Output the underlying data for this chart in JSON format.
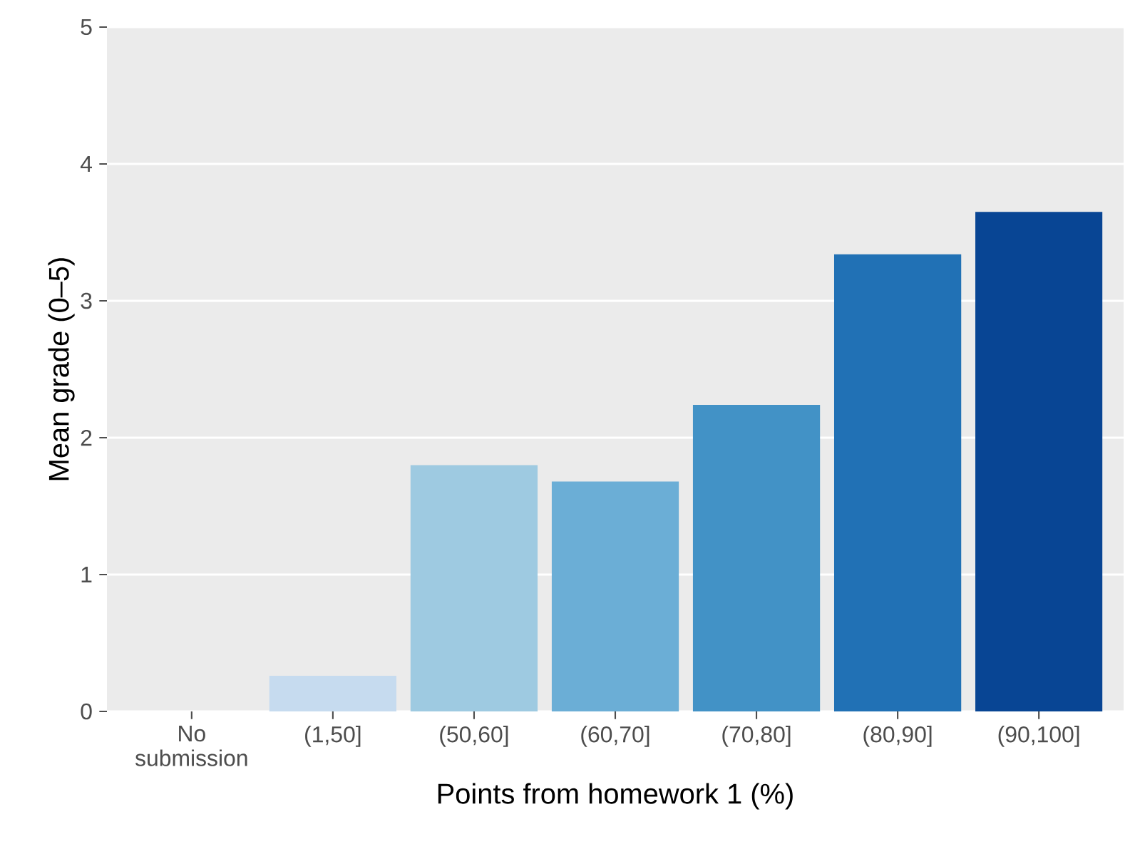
{
  "chart_data": {
    "type": "bar",
    "xlabel": "Points from homework 1 (%)",
    "ylabel": "Mean grade (0–5)",
    "categories": [
      "No submission",
      "(1,50]",
      "(50,60]",
      "(60,70]",
      "(70,80]",
      "(80,90]",
      "(90,100]"
    ],
    "values": [
      null,
      0.26,
      1.8,
      1.68,
      2.24,
      3.34,
      3.65
    ],
    "colors": [
      "#f7fbff",
      "#c6dbef",
      "#9ecae1",
      "#6baed6",
      "#4292c6",
      "#2171b5",
      "#084594"
    ],
    "ylim": [
      0,
      5
    ],
    "yticks": [
      0,
      1,
      2,
      3,
      4,
      5
    ],
    "grid": "y"
  }
}
